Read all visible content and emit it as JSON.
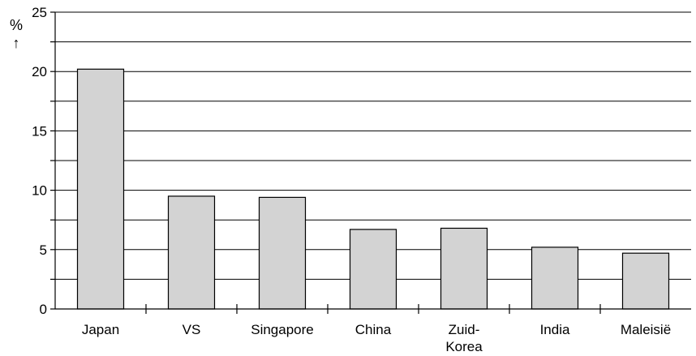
{
  "chart_data": {
    "type": "bar",
    "categories": [
      [
        "Japan"
      ],
      [
        "VS"
      ],
      [
        "Singapore"
      ],
      [
        "China"
      ],
      [
        "Zuid-",
        "Korea"
      ],
      [
        "India"
      ],
      [
        "Maleisië"
      ]
    ],
    "values": [
      20.2,
      9.5,
      9.4,
      6.7,
      6.8,
      5.2,
      4.7
    ],
    "y_unit": "%",
    "y_arrow": "↑",
    "ylim": [
      0,
      25
    ],
    "yticks": [
      0,
      5,
      10,
      15,
      20,
      25
    ],
    "minor_step": 2.5,
    "grid": true,
    "title": "",
    "xlabel": "",
    "ylabel": "",
    "colors": {
      "bar": "#d3d3d3",
      "line": "#000000"
    }
  }
}
